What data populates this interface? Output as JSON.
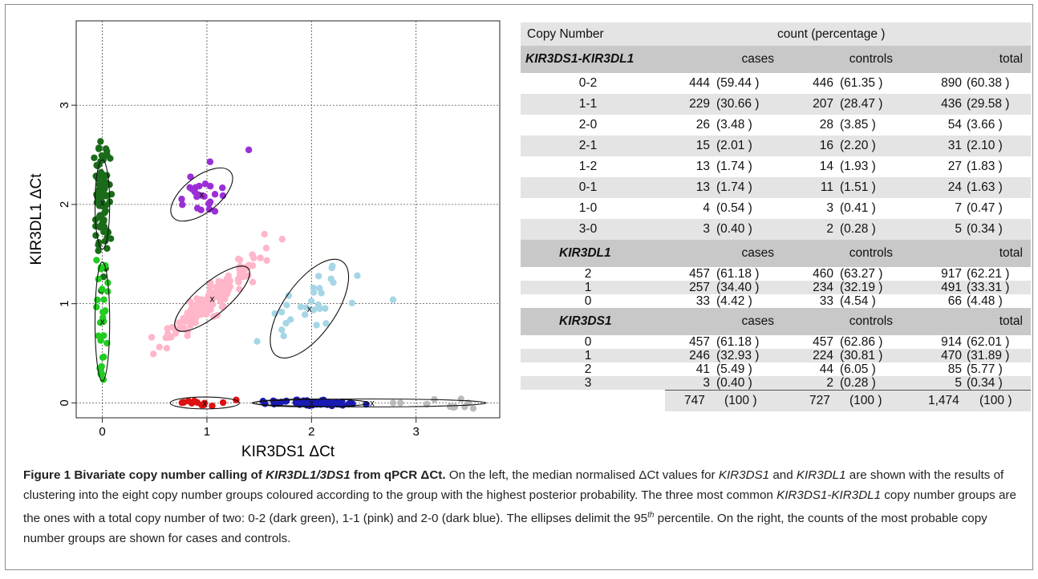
{
  "chart_data": {
    "type": "scatter",
    "xlabel": "KIR3DS1 ΔCt",
    "ylabel": "KIR3DL1 ΔCt",
    "xlim": [
      -0.25,
      3.8
    ],
    "ylim": [
      -0.15,
      3.85
    ],
    "xticks": [
      "0",
      "1",
      "2",
      "3"
    ],
    "yticks": [
      "0",
      "1",
      "2",
      "3"
    ],
    "grid": true,
    "series": [
      {
        "color": "#1a6b1a",
        "center": [
          0.0,
          2.02
        ],
        "spread": [
          0.03,
          0.3
        ],
        "count": 90,
        "ellipse": [
          0.0,
          2.0,
          0.07,
          0.45,
          0
        ]
      },
      {
        "color": "#22cc22",
        "center": [
          0.0,
          0.85
        ],
        "spread": [
          0.03,
          0.25
        ],
        "count": 30,
        "ellipse": [
          0.0,
          0.82,
          0.07,
          0.6,
          0
        ]
      },
      {
        "color": "#ffb6c8",
        "center": [
          1.05,
          1.05
        ],
        "spread": [
          0.2,
          0.22
        ],
        "count": 160,
        "ellipse": [
          1.05,
          1.05,
          0.45,
          0.16,
          40
        ]
      },
      {
        "color": "#a6d6e6",
        "center": [
          1.98,
          0.95
        ],
        "spread": [
          0.25,
          0.3
        ],
        "count": 28,
        "ellipse": [
          1.98,
          0.95,
          0.55,
          0.26,
          55
        ]
      },
      {
        "color": "#9b2fd6",
        "center": [
          0.95,
          2.1
        ],
        "spread": [
          0.1,
          0.1
        ],
        "count": 24,
        "ellipse": [
          0.95,
          2.1,
          0.35,
          0.18,
          38
        ]
      },
      {
        "color": "#dd1111",
        "center": [
          0.98,
          0.0
        ],
        "spread": [
          0.12,
          0.02
        ],
        "count": 8,
        "ellipse": [
          0.98,
          0.0,
          0.33,
          0.06,
          0
        ]
      },
      {
        "color": "#1a1ab5",
        "center": [
          2.0,
          0.0
        ],
        "spread": [
          0.25,
          0.02
        ],
        "count": 70,
        "ellipse": [
          2.0,
          0.0,
          0.55,
          0.04,
          0
        ]
      },
      {
        "color": "#bbbbbb",
        "center": [
          3.15,
          0.0
        ],
        "spread": [
          0.25,
          0.03
        ],
        "count": 6,
        "ellipse": [
          2.55,
          0.0,
          1.12,
          0.04,
          0
        ]
      }
    ],
    "centers": [
      [
        0.0,
        2.02
      ],
      [
        0.0,
        0.82
      ],
      [
        1.05,
        1.05
      ],
      [
        1.98,
        0.95
      ],
      [
        0.95,
        2.1
      ],
      [
        0.98,
        0.0
      ],
      [
        2.0,
        0.0
      ],
      [
        2.58,
        0.0
      ]
    ],
    "center_marker": "x",
    "outliers": [
      {
        "color": "#9b2fd6",
        "points": [
          [
            1.4,
            2.55
          ],
          [
            1.03,
            2.43
          ]
        ]
      },
      {
        "color": "#a6d6e6",
        "points": [
          [
            2.78,
            1.04
          ],
          [
            1.48,
            0.62
          ],
          [
            2.2,
            1.38
          ],
          [
            1.65,
            0.9
          ]
        ]
      },
      {
        "color": "#ffb6c8",
        "points": [
          [
            1.55,
            1.7
          ],
          [
            1.72,
            1.65
          ],
          [
            1.3,
            1.45
          ],
          [
            0.7,
            0.7
          ]
        ]
      },
      {
        "color": "#dd1111",
        "points": [
          [
            0.88,
            0.02
          ],
          [
            0.97,
            -0.02
          ],
          [
            1.28,
            0.03
          ],
          [
            1.05,
            -0.03
          ]
        ]
      },
      {
        "color": "#bbbbbb",
        "points": [
          [
            2.78,
            0.0
          ],
          [
            2.85,
            0.0
          ],
          [
            3.37,
            -0.04
          ],
          [
            3.43,
            0.04
          ],
          [
            3.5,
            0.0
          ]
        ]
      }
    ]
  },
  "table": {
    "header": {
      "col1": "Copy Number",
      "col2": "count (percentage )"
    },
    "sections": [
      {
        "title": "KIR3DS1-KIR3DL1",
        "labels": [
          "cases",
          "controls",
          "total"
        ],
        "rows": [
          {
            "name": "0-2",
            "cases": "444",
            "cases_pct": "(59.44 )",
            "controls": "446",
            "controls_pct": "(61.35 )",
            "total": "890",
            "total_pct": "(60.38 )"
          },
          {
            "name": "1-1",
            "cases": "229",
            "cases_pct": "(30.66 )",
            "controls": "207",
            "controls_pct": "(28.47 )",
            "total": "436",
            "total_pct": "(29.58 )"
          },
          {
            "name": "2-0",
            "cases": "26",
            "cases_pct": "(3.48 )",
            "controls": "28",
            "controls_pct": "(3.85 )",
            "total": "54",
            "total_pct": "(3.66 )"
          },
          {
            "name": "2-1",
            "cases": "15",
            "cases_pct": "(2.01 )",
            "controls": "16",
            "controls_pct": "(2.20 )",
            "total": "31",
            "total_pct": "(2.10 )"
          },
          {
            "name": "1-2",
            "cases": "13",
            "cases_pct": "(1.74 )",
            "controls": "14",
            "controls_pct": "(1.93 )",
            "total": "27",
            "total_pct": "(1.83 )"
          },
          {
            "name": "0-1",
            "cases": "13",
            "cases_pct": "(1.74 )",
            "controls": "11",
            "controls_pct": "(1.51 )",
            "total": "24",
            "total_pct": "(1.63 )"
          },
          {
            "name": "1-0",
            "cases": "4",
            "cases_pct": "(0.54 )",
            "controls": "3",
            "controls_pct": "(0.41 )",
            "total": "7",
            "total_pct": "(0.47 )"
          },
          {
            "name": "3-0",
            "cases": "3",
            "cases_pct": "(0.40 )",
            "controls": "2",
            "controls_pct": "(0.28 )",
            "total": "5",
            "total_pct": "(0.34 )"
          }
        ]
      },
      {
        "title": "KIR3DL1",
        "labels": [
          "cases",
          "controls",
          "total"
        ],
        "rows": [
          {
            "name": "2",
            "cases": "457",
            "cases_pct": "(61.18 )",
            "controls": "460",
            "controls_pct": "(63.27 )",
            "total": "917",
            "total_pct": "(62.21 )"
          },
          {
            "name": "1",
            "cases": "257",
            "cases_pct": "(34.40 )",
            "controls": "234",
            "controls_pct": "(32.19 )",
            "total": "491",
            "total_pct": "(33.31 )"
          },
          {
            "name": "0",
            "cases": "33",
            "cases_pct": "(4.42 )",
            "controls": "33",
            "controls_pct": "(4.54 )",
            "total": "66",
            "total_pct": "(4.48 )"
          }
        ]
      },
      {
        "title": "KIR3DS1",
        "labels": [
          "cases",
          "controls",
          "total"
        ],
        "rows": [
          {
            "name": "0",
            "cases": "457",
            "cases_pct": "(61.18 )",
            "controls": "457",
            "controls_pct": "(62.86 )",
            "total": "914",
            "total_pct": "(62.01 )"
          },
          {
            "name": "1",
            "cases": "246",
            "cases_pct": "(32.93 )",
            "controls": "224",
            "controls_pct": "(30.81 )",
            "total": "470",
            "total_pct": "(31.89 )"
          },
          {
            "name": "2",
            "cases": "41",
            "cases_pct": "(5.49 )",
            "controls": "44",
            "controls_pct": "(6.05 )",
            "total": "85",
            "total_pct": "(5.77 )"
          },
          {
            "name": "3",
            "cases": "3",
            "cases_pct": "(0.40 )",
            "controls": "2",
            "controls_pct": "(0.28 )",
            "total": "5",
            "total_pct": "(0.34 )"
          }
        ]
      }
    ],
    "totals": {
      "cases": "747",
      "cases_pct": "(100 )",
      "controls": "727",
      "controls_pct": "(100 )",
      "total": "1,474",
      "total_pct": "(100 )"
    }
  },
  "caption": {
    "label": "Figure 1",
    "title_a": "Bivariate copy number calling of ",
    "title_b": "KIR3DL1/3DS1",
    "title_c": " from qPCR ΔCt.",
    "s1": " On the left, the median normalised ΔCt values for ",
    "s1_i1": "KIR3DS1",
    "s1_and": " and ",
    "s1_i2": "KIR3DL1",
    "s1_rest": " are shown with the results of clustering into the eight copy number groups coloured according to the group with the highest posterior probability. The three most common ",
    "s2_i": "KIR3DS1-KIR3DL1",
    "s2_rest": " copy number groups are the ones with a total copy number of two: 0-2 (dark green), 1-1 (pink) and 2-0 (dark blue). The ellipses delimit the 95",
    "s2_sup": "th",
    "s3": " percentile. On the right, the counts of the most probable copy number groups are shown for cases and controls."
  }
}
